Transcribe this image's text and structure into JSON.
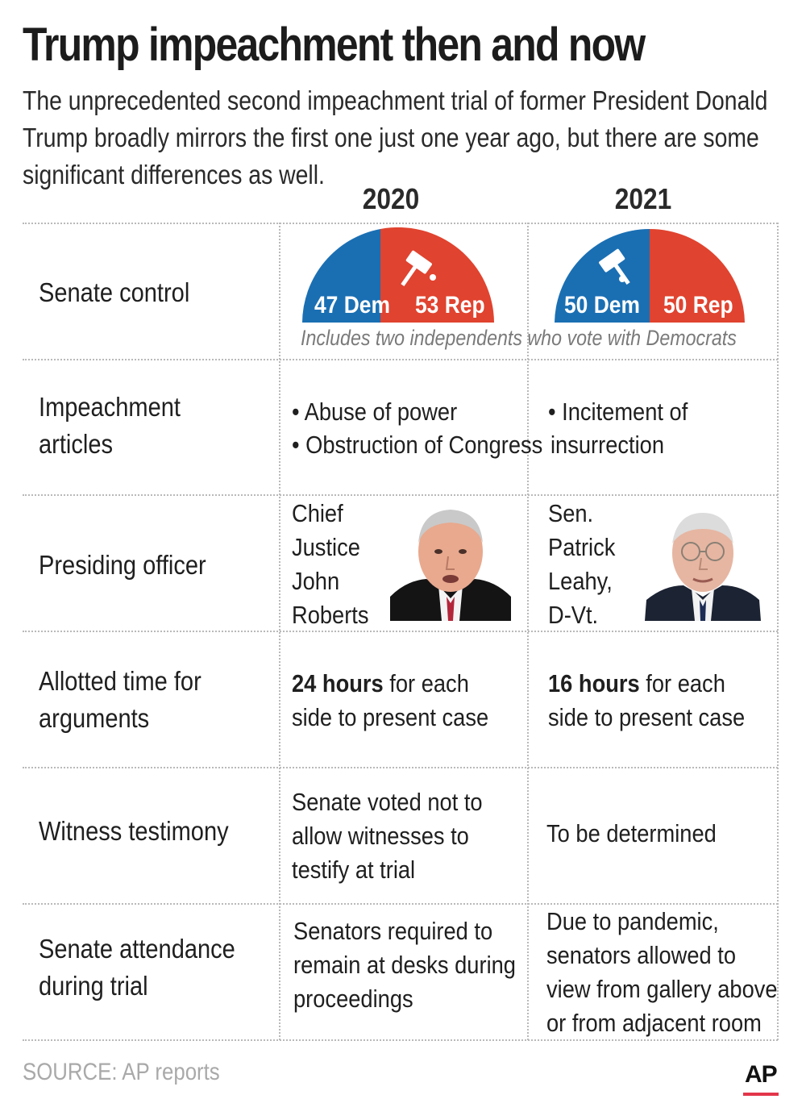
{
  "title": "Trump impeachment then and now",
  "subtitle": "The unprecedented second impeachment trial of former President Donald Trump broadly mirrors the first one just one year ago, but there are some significant differences as well.",
  "years": [
    "2020",
    "2021"
  ],
  "colors": {
    "dem": "#1a6fb3",
    "rep": "#e0432f",
    "rule": "#b9b9b9",
    "source": "#a9a9a9",
    "ap_accent": "#e3364a"
  },
  "senate_control": {
    "label": "Senate control",
    "y2020": {
      "dem": "47 Dem",
      "rep": "53 Rep",
      "dem_seats": 47,
      "rep_seats": 53
    },
    "y2021": {
      "dem": "50 Dem",
      "rep": "50 Rep",
      "dem_seats": 50,
      "rep_seats": 50
    },
    "note": "Includes two independents who vote with Democrats"
  },
  "articles": {
    "label_line1": "Impeachment",
    "label_line2": "articles",
    "y2020_line1": "• Abuse of power",
    "y2020_line2": "• Obstruction of Congress",
    "y2021_line1": "• Incitement of",
    "y2021_line2": "insurrection"
  },
  "presiding": {
    "label": "Presiding officer",
    "y2020": [
      "Chief",
      "Justice",
      "John",
      "Roberts"
    ],
    "y2021": [
      "Sen.",
      "Patrick",
      "Leahy,",
      "D-Vt."
    ]
  },
  "time": {
    "label_line1": "Allotted time for",
    "label_line2": "arguments",
    "y2020_bold": "24 hours",
    "y2020_rest": " for each",
    "y2020_line2": "side to present case",
    "y2021_bold": "16 hours",
    "y2021_rest": " for each",
    "y2021_line2": "side to present case"
  },
  "witness": {
    "label": "Witness testimony",
    "y2020": [
      "Senate voted not to",
      "allow witnesses to",
      "testify at trial"
    ],
    "y2021": "To be determined"
  },
  "attendance": {
    "label_line1": "Senate attendance",
    "label_line2": "during trial",
    "y2020": [
      "Senators required to",
      "remain at desks during",
      "proceedings"
    ],
    "y2021": [
      "Due to pandemic,",
      "senators allowed to",
      "view from gallery above",
      "or from adjacent room"
    ]
  },
  "source": "SOURCE: AP reports",
  "logo": "AP"
}
